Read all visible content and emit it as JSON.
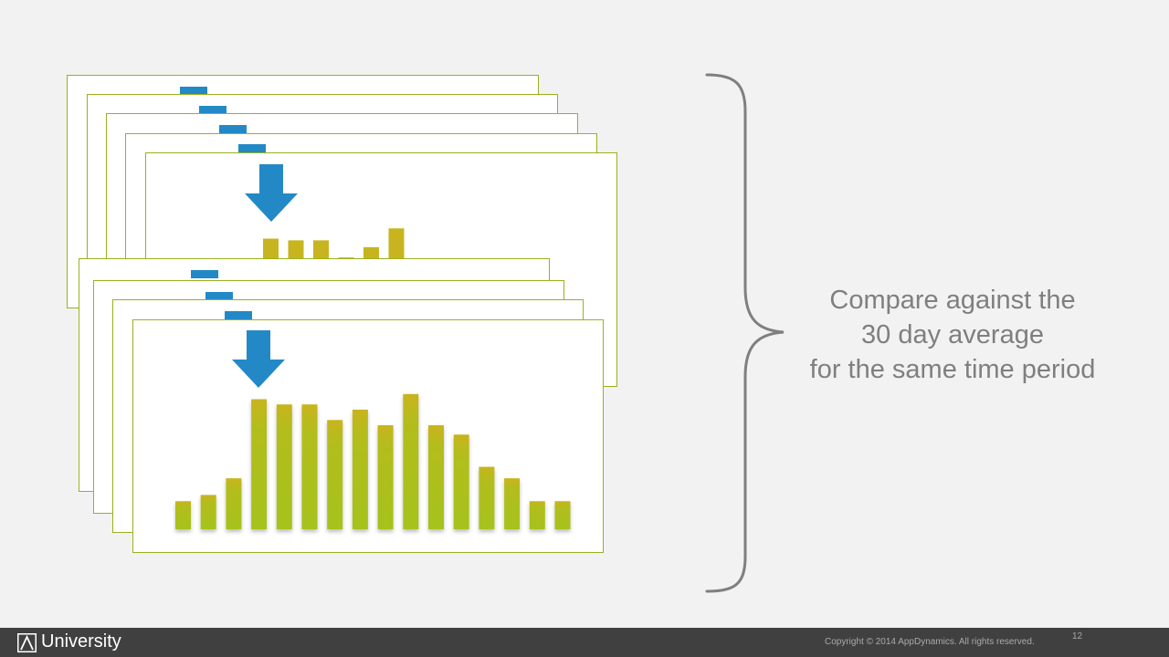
{
  "callout": {
    "line1": "Compare against the",
    "line2": "30 day average",
    "line3": "for the same time period"
  },
  "footer": {
    "brand": "University",
    "copyright": "Copyright © 2014 AppDynamics. All rights reserved.",
    "page_number": "12"
  },
  "colors": {
    "frame_border": "#9ab11e",
    "tab": "#2389c6",
    "arrow": "#2389c6",
    "bar": "#a6c21a",
    "bar_top": "#c8b41e",
    "brace": "#7f7f7f",
    "footer": "#404040"
  },
  "chart_data": [
    {
      "type": "bar",
      "values": [
        3,
        2.75,
        2.75,
        0.25,
        1.75,
        4.5
      ]
    },
    {
      "type": "bar",
      "values": [
        2.7,
        3.3,
        4.9,
        12.5,
        12.0,
        12.0,
        10.5,
        11.5,
        10.0,
        13.0,
        10.0,
        9.1,
        6.0,
        4.9,
        2.7,
        2.7
      ]
    }
  ]
}
